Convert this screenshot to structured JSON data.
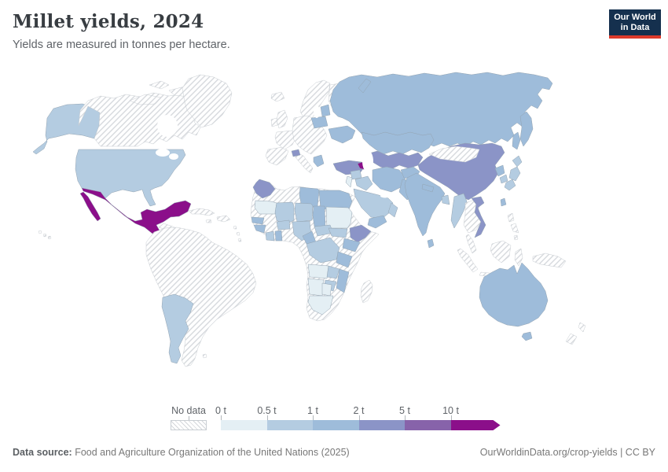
{
  "header": {
    "title": "Millet yields, 2024",
    "subtitle": "Yields are measured in tonnes per hectare."
  },
  "logo": {
    "lines": [
      "Our World",
      "in Data"
    ],
    "bg_color": "#15304e",
    "accent_color": "#dc3a2b"
  },
  "footer": {
    "source_label": "Data source:",
    "source_text": " Food and Agriculture Organization of the United Nations (2025)",
    "right_text": "OurWorldinData.org/crop-yields | CC BY"
  },
  "chart_data": {
    "type": "choropleth_map",
    "title": "Millet yields, 2024",
    "unit": "tonnes per hectare",
    "year": "2024",
    "legend": {
      "no_data_label": "No data",
      "bin_edges": [
        "0 t",
        "0.5 t",
        "1 t",
        "2 t",
        "5 t",
        "10 t"
      ],
      "bin_colors": [
        "#e4eff4",
        "#b4cce1",
        "#9ebcda",
        "#8b94c7",
        "#8763aa",
        "#8b0f8a"
      ],
      "bins": [
        {
          "label": "0 t",
          "range": "0-0.5 t/ha",
          "color": "#e4eff4"
        },
        {
          "label": "0.5 t",
          "range": "0.5-1 t/ha",
          "color": "#b4cce1"
        },
        {
          "label": "1 t",
          "range": "1-2 t/ha",
          "color": "#9ebcda"
        },
        {
          "label": "2 t",
          "range": "2-5 t/ha",
          "color": "#8b94c7"
        },
        {
          "label": "5 t",
          "range": "5-10 t/ha",
          "color": "#8763aa"
        },
        {
          "label": "10 t",
          "range": "10+ t/ha",
          "color": "#8b0f8a"
        }
      ],
      "no_data_hatch_line_color": "#d3d6da"
    },
    "countries": [
      {
        "id": "canada",
        "name": "Canada",
        "bin": 0
      },
      {
        "id": "canada-arctic-islands",
        "name": "Canada (Arctic islands)",
        "bin": 0
      },
      {
        "id": "greenland",
        "name": "Greenland",
        "bin": 0
      },
      {
        "id": "alaska",
        "name": "United States (Alaska)",
        "bin": 2
      },
      {
        "id": "united-states",
        "name": "United States",
        "bin": 2
      },
      {
        "id": "mexico",
        "name": "Mexico",
        "bin": 6
      },
      {
        "id": "baja-california",
        "name": "Mexico (Baja California)",
        "bin": 6
      },
      {
        "id": "central-america",
        "name": "Central America",
        "bin": 0
      },
      {
        "id": "cuba",
        "name": "Cuba",
        "bin": 0
      },
      {
        "id": "hispaniola",
        "name": "Hispaniola",
        "bin": 0
      },
      {
        "id": "jamaica",
        "name": "Jamaica",
        "bin": 0
      },
      {
        "id": "caribbean-islands",
        "name": "Lesser Antilles",
        "bin": 0
      },
      {
        "id": "hawaii",
        "name": "Hawaii",
        "bin": 0
      },
      {
        "id": "south-america",
        "name": "South America (no data)",
        "bin": 0
      },
      {
        "id": "argentina",
        "name": "Argentina",
        "bin": 2
      },
      {
        "id": "falkland-islands",
        "name": "Falkland Islands",
        "bin": 0
      },
      {
        "id": "iceland",
        "name": "Iceland",
        "bin": 0
      },
      {
        "id": "united-kingdom",
        "name": "United Kingdom",
        "bin": 0
      },
      {
        "id": "ireland",
        "name": "Ireland",
        "bin": 0
      },
      {
        "id": "scandinavia",
        "name": "Scandinavia",
        "bin": 0
      },
      {
        "id": "finland",
        "name": "Finland",
        "bin": 0
      },
      {
        "id": "iberia",
        "name": "Spain & Portugal",
        "bin": 0
      },
      {
        "id": "france",
        "name": "France",
        "bin": 0
      },
      {
        "id": "central-europe",
        "name": "Central Europe",
        "bin": 0
      },
      {
        "id": "italy",
        "name": "Italy",
        "bin": 0
      },
      {
        "id": "poland",
        "name": "Poland",
        "bin": 3
      },
      {
        "id": "baltics",
        "name": "Baltic states",
        "bin": 3
      },
      {
        "id": "ukraine",
        "name": "Ukraine",
        "bin": 3
      },
      {
        "id": "switzerland",
        "name": "Switzerland",
        "bin": 4
      },
      {
        "id": "greece",
        "name": "Greece",
        "bin": 3
      },
      {
        "id": "turkey",
        "name": "Turkey",
        "bin": 4
      },
      {
        "id": "azerbaijan",
        "name": "Azerbaijan",
        "bin": 6
      },
      {
        "id": "russia",
        "name": "Russia",
        "bin": 3
      },
      {
        "id": "kamchatka",
        "name": "Russia (Kamchatka)",
        "bin": 3
      },
      {
        "id": "sakhalin",
        "name": "Russia (Sakhalin)",
        "bin": 3
      },
      {
        "id": "novaya-zemlya",
        "name": "Russia (Novaya Zemlya)",
        "bin": 3
      },
      {
        "id": "kazakhstan",
        "name": "Kazakhstan",
        "bin": 3
      },
      {
        "id": "central-asia",
        "name": "Central Asia",
        "bin": 4
      },
      {
        "id": "syria",
        "name": "Syria",
        "bin": 2
      },
      {
        "id": "iraq",
        "name": "Iraq",
        "bin": 2
      },
      {
        "id": "jordan-israel",
        "name": "Jordan & Israel",
        "bin": 1
      },
      {
        "id": "saudi-arabia",
        "name": "Saudi Arabia",
        "bin": 2
      },
      {
        "id": "yemen",
        "name": "Yemen",
        "bin": 3
      },
      {
        "id": "oman",
        "name": "Oman",
        "bin": 2
      },
      {
        "id": "iran",
        "name": "Iran",
        "bin": 3
      },
      {
        "id": "afghanistan",
        "name": "Afghanistan",
        "bin": 3
      },
      {
        "id": "pakistan",
        "name": "Pakistan",
        "bin": 3
      },
      {
        "id": "india",
        "name": "India",
        "bin": 3
      },
      {
        "id": "nepal",
        "name": "Nepal",
        "bin": 3
      },
      {
        "id": "bangladesh",
        "name": "Bangladesh",
        "bin": 2
      },
      {
        "id": "sri-lanka",
        "name": "Sri Lanka",
        "bin": 3
      },
      {
        "id": "china",
        "name": "China",
        "bin": 4
      },
      {
        "id": "mongolia",
        "name": "Mongolia",
        "bin": 0
      },
      {
        "id": "myanmar",
        "name": "Myanmar",
        "bin": 2
      },
      {
        "id": "thailand-laos-cambodia",
        "name": "Thailand, Laos & Cambodia",
        "bin": 0
      },
      {
        "id": "malay-peninsula",
        "name": "Malaysia",
        "bin": 0
      },
      {
        "id": "vietnam",
        "name": "Vietnam",
        "bin": 4
      },
      {
        "id": "north-korea",
        "name": "North Korea",
        "bin": 3
      },
      {
        "id": "south-korea",
        "name": "South Korea",
        "bin": 2
      },
      {
        "id": "japan",
        "name": "Japan",
        "bin": 2
      },
      {
        "id": "taiwan",
        "name": "Taiwan",
        "bin": 3
      },
      {
        "id": "philippines",
        "name": "Philippines",
        "bin": 0
      },
      {
        "id": "indonesia",
        "name": "Indonesia",
        "bin": 0
      },
      {
        "id": "new-guinea",
        "name": "New Guinea",
        "bin": 0
      },
      {
        "id": "australia",
        "name": "Australia",
        "bin": 3
      },
      {
        "id": "tasmania",
        "name": "Australia (Tasmania)",
        "bin": 3
      },
      {
        "id": "new-zealand",
        "name": "New Zealand",
        "bin": 0
      },
      {
        "id": "morocco",
        "name": "Morocco",
        "bin": 4
      },
      {
        "id": "algeria-sahara",
        "name": "Algeria & Western Sahara",
        "bin": 0
      },
      {
        "id": "libya",
        "name": "Libya",
        "bin": 3
      },
      {
        "id": "egypt",
        "name": "Egypt",
        "bin": 3
      },
      {
        "id": "mauritania",
        "name": "Mauritania",
        "bin": 1
      },
      {
        "id": "mali",
        "name": "Mali",
        "bin": 2
      },
      {
        "id": "niger",
        "name": "Niger",
        "bin": 2
      },
      {
        "id": "chad",
        "name": "Chad",
        "bin": 3
      },
      {
        "id": "sudan",
        "name": "Sudan",
        "bin": 1
      },
      {
        "id": "ethiopia",
        "name": "Ethiopia",
        "bin": 4
      },
      {
        "id": "senegal",
        "name": "Senegal",
        "bin": 3
      },
      {
        "id": "guinea",
        "name": "Guinea",
        "bin": 3
      },
      {
        "id": "ivory-coast",
        "name": "Cote d'Ivoire",
        "bin": 2
      },
      {
        "id": "ghana",
        "name": "Ghana",
        "bin": 3
      },
      {
        "id": "burkina-faso",
        "name": "Burkina Faso",
        "bin": 2
      },
      {
        "id": "nigeria",
        "name": "Nigeria",
        "bin": 2
      },
      {
        "id": "cameroon",
        "name": "Cameroon",
        "bin": 3
      },
      {
        "id": "central-african-republic",
        "name": "Central African Republic",
        "bin": 2
      },
      {
        "id": "south-sudan",
        "name": "South Sudan",
        "bin": 2
      },
      {
        "id": "uganda-kenya",
        "name": "Uganda & Kenya",
        "bin": 3
      },
      {
        "id": "dr-congo",
        "name": "Democratic Republic of Congo",
        "bin": 2
      },
      {
        "id": "tanzania",
        "name": "Tanzania",
        "bin": 3
      },
      {
        "id": "angola",
        "name": "Angola",
        "bin": 1
      },
      {
        "id": "zambia",
        "name": "Zambia",
        "bin": 2
      },
      {
        "id": "mozambique",
        "name": "Mozambique",
        "bin": 3
      },
      {
        "id": "zimbabwe",
        "name": "Zimbabwe",
        "bin": 2
      },
      {
        "id": "namibia",
        "name": "Namibia",
        "bin": 1
      },
      {
        "id": "botswana",
        "name": "Botswana",
        "bin": 1
      },
      {
        "id": "south-africa",
        "name": "South Africa",
        "bin": 1
      },
      {
        "id": "madagascar",
        "name": "Madagascar",
        "bin": 0
      }
    ]
  }
}
